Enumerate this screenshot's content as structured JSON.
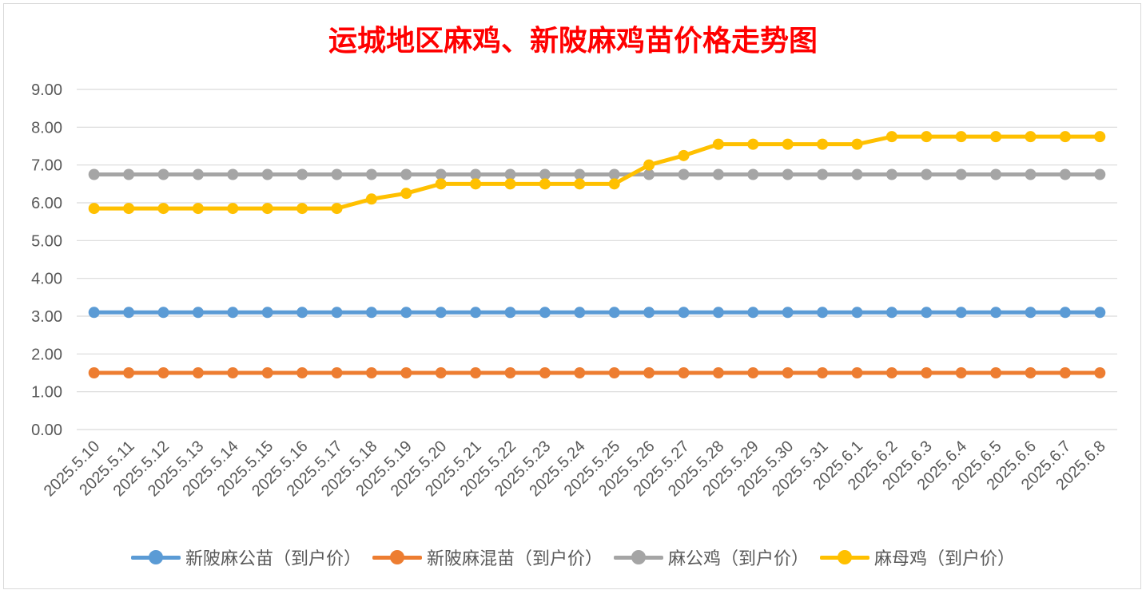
{
  "chart_data": {
    "type": "line",
    "title": "运城地区麻鸡、新陂麻鸡苗价格走势图",
    "xlabel": "",
    "ylabel": "",
    "ylim": [
      0,
      9
    ],
    "yticks": [
      "0.00",
      "1.00",
      "2.00",
      "3.00",
      "4.00",
      "5.00",
      "6.00",
      "7.00",
      "8.00",
      "9.00"
    ],
    "grid": true,
    "legend_position": "bottom",
    "categories": [
      "2025.5.10",
      "2025.5.11",
      "2025.5.12",
      "2025.5.13",
      "2025.5.14",
      "2025.5.15",
      "2025.5.16",
      "2025.5.17",
      "2025.5.18",
      "2025.5.19",
      "2025.5.20",
      "2025.5.21",
      "2025.5.22",
      "2025.5.23",
      "2025.5.24",
      "2025.5.25",
      "2025.5.26",
      "2025.5.27",
      "2025.5.28",
      "2025.5.29",
      "2025.5.30",
      "2025.5.31",
      "2025.6.1",
      "2025.6.2",
      "2025.6.3",
      "2025.6.4",
      "2025.6.5",
      "2025.6.6",
      "2025.6.7",
      "2025.6.8"
    ],
    "series": [
      {
        "name": "新陂麻公苗（到户价）",
        "color": "#5b9bd5",
        "values": [
          3.1,
          3.1,
          3.1,
          3.1,
          3.1,
          3.1,
          3.1,
          3.1,
          3.1,
          3.1,
          3.1,
          3.1,
          3.1,
          3.1,
          3.1,
          3.1,
          3.1,
          3.1,
          3.1,
          3.1,
          3.1,
          3.1,
          3.1,
          3.1,
          3.1,
          3.1,
          3.1,
          3.1,
          3.1,
          3.1
        ]
      },
      {
        "name": "新陂麻混苗（到户价）",
        "color": "#ed7d31",
        "values": [
          1.5,
          1.5,
          1.5,
          1.5,
          1.5,
          1.5,
          1.5,
          1.5,
          1.5,
          1.5,
          1.5,
          1.5,
          1.5,
          1.5,
          1.5,
          1.5,
          1.5,
          1.5,
          1.5,
          1.5,
          1.5,
          1.5,
          1.5,
          1.5,
          1.5,
          1.5,
          1.5,
          1.5,
          1.5,
          1.5
        ]
      },
      {
        "name": "麻公鸡（到户价）",
        "color": "#a5a5a5",
        "values": [
          6.75,
          6.75,
          6.75,
          6.75,
          6.75,
          6.75,
          6.75,
          6.75,
          6.75,
          6.75,
          6.75,
          6.75,
          6.75,
          6.75,
          6.75,
          6.75,
          6.75,
          6.75,
          6.75,
          6.75,
          6.75,
          6.75,
          6.75,
          6.75,
          6.75,
          6.75,
          6.75,
          6.75,
          6.75,
          6.75
        ]
      },
      {
        "name": "麻母鸡（到户价）",
        "color": "#ffc000",
        "values": [
          5.85,
          5.85,
          5.85,
          5.85,
          5.85,
          5.85,
          5.85,
          5.85,
          6.1,
          6.25,
          6.5,
          6.5,
          6.5,
          6.5,
          6.5,
          6.5,
          7.0,
          7.25,
          7.55,
          7.55,
          7.55,
          7.55,
          7.55,
          7.75,
          7.75,
          7.75,
          7.75,
          7.75,
          7.75,
          7.75
        ]
      }
    ]
  }
}
